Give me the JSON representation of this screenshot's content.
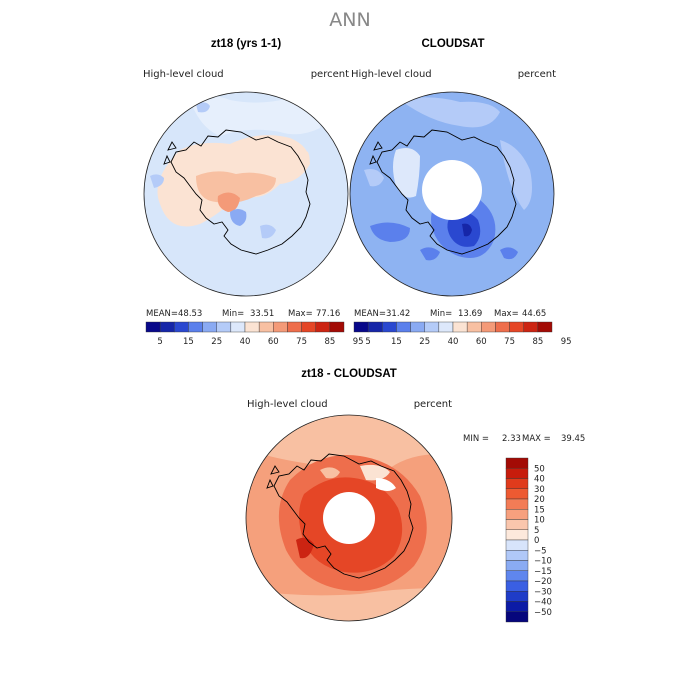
{
  "figure": {
    "title": "ANN"
  },
  "panels": [
    {
      "title": "zt18 (yrs 1-1)",
      "left_label": "High-level cloud",
      "right_label": "percent",
      "stats": {
        "mean_label": "MEAN=",
        "mean": "48.53",
        "min_label": "Min=",
        "min": "33.51",
        "max_label": "Max=",
        "max": "77.16"
      },
      "background_color": "#d7e6fa",
      "has_pole_hole": false
    },
    {
      "title": "CLOUDSAT",
      "left_label": "High-level cloud",
      "right_label": "percent",
      "stats": {
        "mean_label": "MEAN=",
        "mean": "31.42",
        "min_label": "Min=",
        "min": "13.69",
        "max_label": "Max=",
        "max": "44.65"
      },
      "background_color": "#8eb3f2",
      "has_pole_hole": true
    },
    {
      "title": "zt18 - CLOUDSAT",
      "left_label": "High-level cloud",
      "right_label": "percent",
      "stats": {
        "min_label": "MIN =",
        "min": "2.33",
        "max_label": "MAX =",
        "max": "39.45"
      },
      "background_color": "#f5a07c",
      "has_pole_hole": true
    }
  ],
  "colorbar_abs": {
    "labels": [
      "5",
      "15",
      "25",
      "40",
      "60",
      "75",
      "85",
      "95"
    ],
    "colors": [
      "#08088a",
      "#1626a8",
      "#2a48d0",
      "#5b80ec",
      "#8aaaf3",
      "#b4cbf8",
      "#dde8fb",
      "#fbe3d3",
      "#f8c0a2",
      "#f49a78",
      "#ee6e4c",
      "#e54626",
      "#cc2412",
      "#a30b05"
    ]
  },
  "colorbar_diff": {
    "labels": [
      "50",
      "40",
      "30",
      "20",
      "15",
      "10",
      "5",
      "0",
      "−5",
      "−10",
      "−15",
      "−20",
      "−30",
      "−40",
      "−50"
    ],
    "colors": [
      "#a30b05",
      "#c71c0c",
      "#e03b1c",
      "#ee5a32",
      "#f37c56",
      "#f7a07e",
      "#fac6ad",
      "#fde9dc",
      "#d7e4fb",
      "#b0c8f8",
      "#8aabf3",
      "#5f86ee",
      "#3a5fe3",
      "#1f3cc8",
      "#0c1ba6",
      "#06067c"
    ]
  }
}
